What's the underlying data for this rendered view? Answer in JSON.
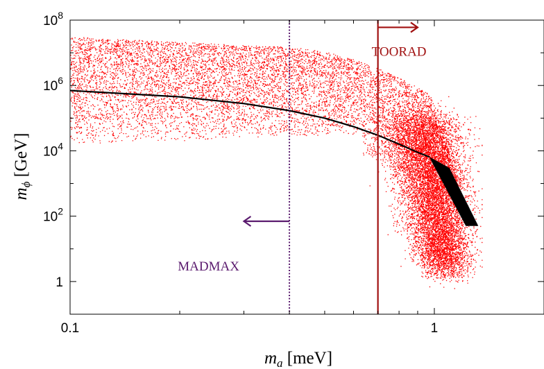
{
  "chart_data": {
    "type": "scatter",
    "title": "",
    "xlabel": {
      "var": "m",
      "sub": "a",
      "unit": " [meV]"
    },
    "ylabel": {
      "var": "m",
      "sub": "ϕ",
      "unit": " [GeV]"
    },
    "x_scale": "log",
    "y_scale": "log",
    "xlim": [
      0.1,
      2.0
    ],
    "ylim": [
      0.1,
      100000000
    ],
    "x_ticks": [
      {
        "value": 0.1,
        "label": "0.1"
      },
      {
        "value": 1,
        "label": "1"
      }
    ],
    "y_ticks": [
      {
        "value": 1,
        "base": "1",
        "exp": ""
      },
      {
        "value": 100,
        "base": "10",
        "exp": "2"
      },
      {
        "value": 10000,
        "base": "10",
        "exp": "4"
      },
      {
        "value": 1000000,
        "base": "10",
        "exp": "6"
      },
      {
        "value": 100000000,
        "base": "10",
        "exp": "8"
      }
    ],
    "grid": false,
    "scatter_color": "#ff0000",
    "scatter_description": "dense random points; upper envelope falls from ~3e7 at 0.1 meV to ~1e5 near 1 meV, then a steep plume down to ~0.3 GeV near 1.1 meV",
    "curve": {
      "color": "#000000",
      "x": [
        0.1,
        0.2,
        0.3,
        0.4,
        0.5,
        0.6,
        0.7,
        0.8,
        0.9,
        0.97
      ],
      "y": [
        700000,
        450000,
        280000,
        170000,
        100000,
        55000,
        30000,
        16000,
        9000,
        6500
      ]
    },
    "band": {
      "color": "#000000",
      "polygon": [
        [
          0.97,
          6500
        ],
        [
          1.1,
          3000
        ],
        [
          1.32,
          50
        ],
        [
          1.22,
          50
        ],
        [
          0.98,
          5000
        ]
      ]
    },
    "annotations": [
      {
        "label": "MADMAX",
        "color": "#5a1a6e",
        "line_x": 0.4,
        "line_style": "dotted",
        "arrow_direction": "left",
        "arrow_from_x": 0.4,
        "arrow_to_x": 0.3,
        "arrow_y": 70,
        "label_x": 0.24,
        "label_y": 2.2
      },
      {
        "label": "TOORAD",
        "color": "#a01010",
        "line_x": 0.7,
        "line_style": "solid",
        "arrow_direction": "right",
        "arrow_from_x": 0.7,
        "arrow_to_x": 0.9,
        "arrow_y": 60000000,
        "label_x": 0.8,
        "label_y": 8000000
      }
    ]
  }
}
